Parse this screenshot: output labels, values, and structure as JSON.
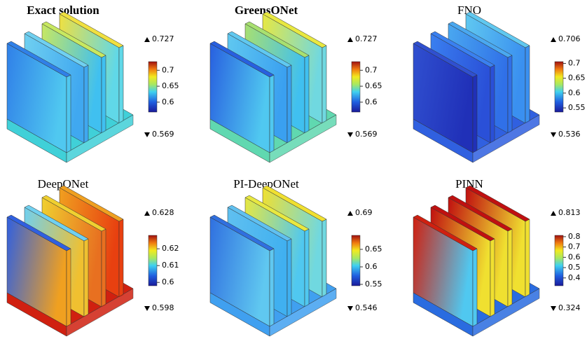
{
  "panels": [
    {
      "title": "Exact solution",
      "bold": true,
      "max": 0.727,
      "min": 0.569,
      "ticks": [
        0.6,
        0.65,
        0.7
      ]
    },
    {
      "title": "GreensONet",
      "bold": true,
      "max": 0.727,
      "min": 0.569,
      "ticks": [
        0.6,
        0.65,
        0.7
      ]
    },
    {
      "title": "FNO",
      "bold": false,
      "max": 0.706,
      "min": 0.536,
      "ticks": [
        0.55,
        0.6,
        0.65,
        0.7
      ]
    },
    {
      "title": "DeepONet",
      "bold": false,
      "max": 0.628,
      "min": 0.598,
      "ticks": [
        0.6,
        0.61,
        0.62
      ]
    },
    {
      "title": "PI-DeepONet",
      "bold": false,
      "max": 0.69,
      "min": 0.546,
      "ticks": [
        0.55,
        0.6,
        0.65
      ]
    },
    {
      "title": "PINN",
      "bold": false,
      "max": 0.813,
      "min": 0.324,
      "ticks": [
        0.4,
        0.5,
        0.6,
        0.7,
        0.8
      ]
    }
  ]
}
